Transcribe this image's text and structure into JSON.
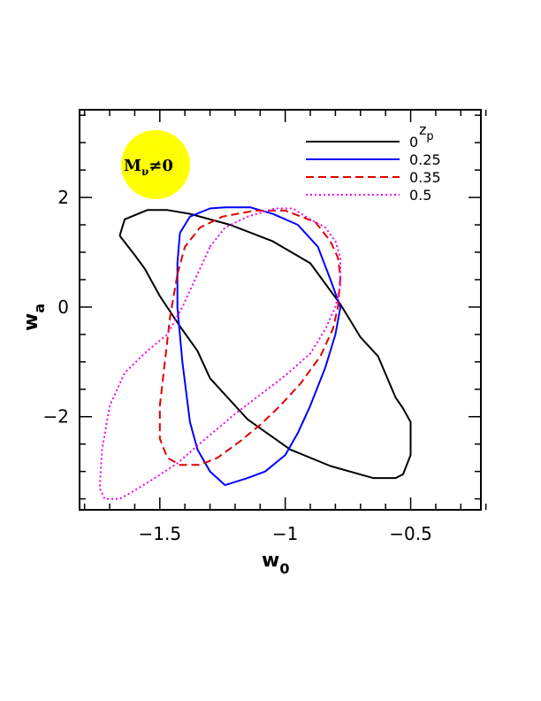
{
  "chart_data": {
    "type": "line",
    "xlabel": "w",
    "xlabel_sub": "0",
    "ylabel": "w",
    "ylabel_sub": "a",
    "xlim": [
      -1.82,
      -0.22
    ],
    "ylim": [
      -3.7,
      3.6
    ],
    "x_ticks": [
      -1.5,
      -1,
      -0.5
    ],
    "x_tick_labels": [
      "−1.5",
      "−1",
      "−0.5"
    ],
    "y_ticks": [
      -2,
      0,
      2
    ],
    "y_tick_labels": [
      "−2",
      "0",
      "2"
    ],
    "grid": false,
    "legend": {
      "title": "z",
      "title_sub": "p",
      "placement": "top-right"
    },
    "annotation": {
      "text": "M",
      "sub": "ν",
      "suffix": "≠0",
      "fill_color": "#ffff00",
      "placement": "top-left"
    },
    "series": [
      {
        "name": "0",
        "color": "#000000",
        "dash": "solid",
        "points": [
          [
            -1.66,
            1.3
          ],
          [
            -1.64,
            1.6
          ],
          [
            -1.55,
            1.77
          ],
          [
            -1.47,
            1.77
          ],
          [
            -1.38,
            1.7
          ],
          [
            -1.22,
            1.5
          ],
          [
            -1.05,
            1.2
          ],
          [
            -0.9,
            0.8
          ],
          [
            -0.78,
            0.05
          ],
          [
            -0.7,
            -0.55
          ],
          [
            -0.63,
            -0.9
          ],
          [
            -0.56,
            -1.65
          ],
          [
            -0.53,
            -1.85
          ],
          [
            -0.5,
            -2.1
          ],
          [
            -0.5,
            -2.7
          ],
          [
            -0.53,
            -3.05
          ],
          [
            -0.56,
            -3.12
          ],
          [
            -0.65,
            -3.12
          ],
          [
            -0.82,
            -2.9
          ],
          [
            -0.98,
            -2.6
          ],
          [
            -1.15,
            -2.05
          ],
          [
            -1.3,
            -1.3
          ],
          [
            -1.35,
            -0.8
          ],
          [
            -1.42,
            -0.35
          ],
          [
            -1.5,
            0.2
          ],
          [
            -1.56,
            0.7
          ],
          [
            -1.6,
            0.95
          ],
          [
            -1.66,
            1.3
          ]
        ]
      },
      {
        "name": "0.25",
        "color": "#0000ff",
        "dash": "solid",
        "points": [
          [
            -1.42,
            1.35
          ],
          [
            -1.38,
            1.65
          ],
          [
            -1.3,
            1.8
          ],
          [
            -1.24,
            1.82
          ],
          [
            -1.14,
            1.82
          ],
          [
            -1.05,
            1.7
          ],
          [
            -0.95,
            1.5
          ],
          [
            -0.87,
            1.1
          ],
          [
            -0.82,
            0.5
          ],
          [
            -0.78,
            0.0
          ],
          [
            -0.8,
            -0.5
          ],
          [
            -0.84,
            -1.1
          ],
          [
            -0.9,
            -1.8
          ],
          [
            -0.95,
            -2.3
          ],
          [
            -1.0,
            -2.7
          ],
          [
            -1.08,
            -3.0
          ],
          [
            -1.15,
            -3.12
          ],
          [
            -1.24,
            -3.25
          ],
          [
            -1.3,
            -3.0
          ],
          [
            -1.35,
            -2.6
          ],
          [
            -1.38,
            -2.1
          ],
          [
            -1.41,
            -1.0
          ],
          [
            -1.43,
            0.0
          ],
          [
            -1.43,
            0.8
          ],
          [
            -1.42,
            1.35
          ]
        ]
      },
      {
        "name": "0.35",
        "color": "#e00000",
        "dash": "dashed",
        "points": [
          [
            -1.43,
            0.6
          ],
          [
            -1.4,
            1.1
          ],
          [
            -1.34,
            1.45
          ],
          [
            -1.25,
            1.65
          ],
          [
            -1.12,
            1.76
          ],
          [
            -1.0,
            1.76
          ],
          [
            -0.88,
            1.55
          ],
          [
            -0.82,
            1.2
          ],
          [
            -0.79,
            0.9
          ],
          [
            -0.78,
            0.55
          ],
          [
            -0.79,
            0.0
          ],
          [
            -0.81,
            -0.4
          ],
          [
            -0.86,
            -0.9
          ],
          [
            -0.94,
            -1.4
          ],
          [
            -1.02,
            -1.8
          ],
          [
            -1.1,
            -2.15
          ],
          [
            -1.18,
            -2.45
          ],
          [
            -1.27,
            -2.75
          ],
          [
            -1.34,
            -2.88
          ],
          [
            -1.42,
            -2.88
          ],
          [
            -1.47,
            -2.75
          ],
          [
            -1.5,
            -2.4
          ],
          [
            -1.5,
            -1.8
          ],
          [
            -1.48,
            -1.0
          ],
          [
            -1.46,
            -0.2
          ],
          [
            -1.43,
            0.6
          ]
        ]
      },
      {
        "name": "0.5",
        "color": "#ee00ee",
        "dash": "dotted",
        "points": [
          [
            -1.3,
            1.1
          ],
          [
            -1.24,
            1.45
          ],
          [
            -1.15,
            1.65
          ],
          [
            -1.04,
            1.8
          ],
          [
            -0.97,
            1.8
          ],
          [
            -0.9,
            1.6
          ],
          [
            -0.84,
            1.45
          ],
          [
            -0.8,
            1.2
          ],
          [
            -0.78,
            0.9
          ],
          [
            -0.78,
            0.4
          ],
          [
            -0.8,
            0.0
          ],
          [
            -0.84,
            -0.4
          ],
          [
            -0.9,
            -0.85
          ],
          [
            -1.0,
            -1.25
          ],
          [
            -1.1,
            -1.6
          ],
          [
            -1.2,
            -1.95
          ],
          [
            -1.33,
            -2.45
          ],
          [
            -1.43,
            -2.85
          ],
          [
            -1.53,
            -3.15
          ],
          [
            -1.62,
            -3.4
          ],
          [
            -1.66,
            -3.5
          ],
          [
            -1.72,
            -3.5
          ],
          [
            -1.74,
            -3.3
          ],
          [
            -1.73,
            -2.6
          ],
          [
            -1.7,
            -1.8
          ],
          [
            -1.64,
            -1.2
          ],
          [
            -1.55,
            -0.8
          ],
          [
            -1.47,
            -0.5
          ],
          [
            -1.41,
            0.0
          ],
          [
            -1.35,
            0.6
          ],
          [
            -1.3,
            1.1
          ]
        ]
      }
    ]
  }
}
